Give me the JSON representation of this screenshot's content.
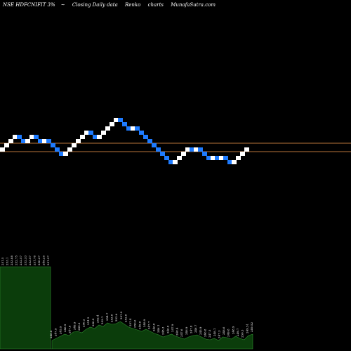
{
  "header": {
    "symbol": "NSE HDFCNIFIT 3%",
    "tilde": "~",
    "closing": "Closing Daily data",
    "renko": "Renko",
    "charts": "charts",
    "site": "MunafaSutra.com"
  },
  "chart_data": {
    "type": "renko",
    "title": "NSE HDFCNIFIT 3%~ Closing Daily data Renko charts MunafaSutra.com",
    "colors": {
      "up": "#ffffff",
      "down": "#1e7bff",
      "line": "#b8733a",
      "volume_fill": "#0b3d0b",
      "volume_line": "#2e8b2e"
    },
    "levels": [
      40.4,
      39.2
    ],
    "box_size": 0.6,
    "brick_closes": [
      39.8,
      40.4,
      41.0,
      41.6,
      41.0,
      40.4,
      41.0,
      41.6,
      41.0,
      40.4,
      41.0,
      40.4,
      39.8,
      39.2,
      38.6,
      39.2,
      39.8,
      40.4,
      41.0,
      41.6,
      42.2,
      41.6,
      41.0,
      41.6,
      42.2,
      42.8,
      43.4,
      44.0,
      43.4,
      42.8,
      42.2,
      42.8,
      42.2,
      41.6,
      41.0,
      40.4,
      39.8,
      39.2,
      38.6,
      38.0,
      37.4,
      38.0,
      38.6,
      39.2,
      39.8,
      39.2,
      39.8,
      39.2,
      38.6,
      38.0,
      38.6,
      38.0,
      38.6,
      38.0,
      37.4,
      38.0,
      38.6,
      39.2,
      39.8
    ],
    "volume_labels": [
      "251.5",
      "253.1",
      "253.88",
      "252.75",
      "252.57",
      "252.33",
      "253.57",
      "251.78",
      "250.27",
      "249.25",
      "251.27",
      "248.8",
      "247.9",
      "245.9",
      "246.9",
      "247.8",
      "248.9",
      "249.3",
      "250.2",
      "251.5",
      "250.9",
      "252.4",
      "253.1",
      "254.7",
      "253.8",
      "252.6",
      "251.9",
      "252.8",
      "251.4",
      "250.6",
      "249.8",
      "248.9",
      "247.7",
      "246.8",
      "246.1",
      "245.3",
      "246.8",
      "247.9",
      "248.4",
      "247.6",
      "246.9",
      "247.8",
      "246.7",
      "245.9",
      "246.8",
      "247.5",
      "248.1",
      "247.3",
      "248.6",
      "249.8",
      "248.9",
      "249.7",
      "250.3",
      "249.51",
      "249.52"
    ]
  }
}
